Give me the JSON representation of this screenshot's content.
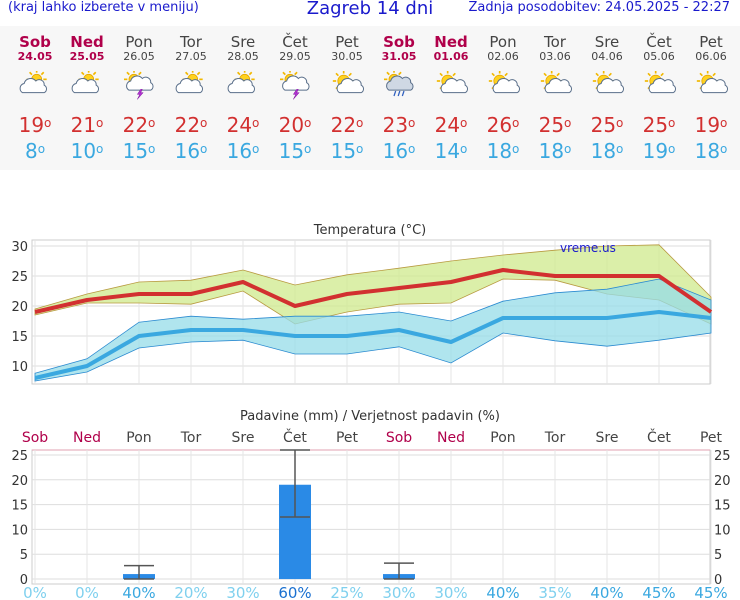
{
  "header": {
    "left_text": "(kraj lahko izberete v meniju)",
    "title": "Zagreb 14 dni",
    "updated": "Zadnja posodobitev: 24.05.2025 - 22:27"
  },
  "colors": {
    "weekend": "#b0004a",
    "weekday": "#444444",
    "max": "#d23030",
    "min": "#3aa8e0",
    "bar": "#2a8ae6"
  },
  "days": [
    {
      "name": "Sob",
      "date": "24.05",
      "weekend": true,
      "icon": "partly-cloudy-icon",
      "max": "19",
      "min": "8"
    },
    {
      "name": "Ned",
      "date": "25.05",
      "weekend": true,
      "icon": "partly-cloudy-icon",
      "max": "21",
      "min": "10"
    },
    {
      "name": "Pon",
      "date": "26.05",
      "weekend": false,
      "icon": "thunderstorm-icon",
      "max": "22",
      "min": "15"
    },
    {
      "name": "Tor",
      "date": "27.05",
      "weekend": false,
      "icon": "partly-cloudy-icon",
      "max": "22",
      "min": "16"
    },
    {
      "name": "Sre",
      "date": "28.05",
      "weekend": false,
      "icon": "partly-cloudy-icon",
      "max": "24",
      "min": "16"
    },
    {
      "name": "Čet",
      "date": "29.05",
      "weekend": false,
      "icon": "thunderstorm-icon",
      "max": "20",
      "min": "15"
    },
    {
      "name": "Pet",
      "date": "30.05",
      "weekend": false,
      "icon": "sun-cloud-icon",
      "max": "22",
      "min": "15"
    },
    {
      "name": "Sob",
      "date": "31.05",
      "weekend": true,
      "icon": "rain-shower-icon",
      "max": "23",
      "min": "16"
    },
    {
      "name": "Ned",
      "date": "01.06",
      "weekend": true,
      "icon": "sun-cloud-icon",
      "max": "24",
      "min": "14"
    },
    {
      "name": "Pon",
      "date": "02.06",
      "weekend": false,
      "icon": "sun-cloud-icon",
      "max": "26",
      "min": "18"
    },
    {
      "name": "Tor",
      "date": "03.06",
      "weekend": false,
      "icon": "sun-cloud-icon",
      "max": "25",
      "min": "18"
    },
    {
      "name": "Sre",
      "date": "04.06",
      "weekend": false,
      "icon": "sun-cloud-icon",
      "max": "25",
      "min": "18"
    },
    {
      "name": "Čet",
      "date": "05.06",
      "weekend": false,
      "icon": "sun-cloud-icon",
      "max": "25",
      "min": "19"
    },
    {
      "name": "Pet",
      "date": "06.06",
      "weekend": false,
      "icon": "sun-cloud-icon",
      "max": "19",
      "min": "18"
    }
  ],
  "chart_data": [
    {
      "type": "line",
      "title": "Temperatura (°C)",
      "watermark": "vreme.us",
      "ylim": [
        7,
        31
      ],
      "yticks": [
        10,
        15,
        20,
        25,
        30
      ],
      "grid": true,
      "series": [
        {
          "values": [
            19,
            21,
            22,
            22,
            24,
            20,
            22,
            23,
            24,
            26,
            25,
            25,
            25,
            19
          ],
          "color": "#d23030"
        },
        {
          "values": [
            8,
            10,
            15,
            16,
            16,
            15,
            15,
            16,
            14,
            18,
            18,
            18,
            19,
            18
          ],
          "color": "#3aa8e0"
        }
      ],
      "bands": [
        {
          "low": [
            18.5,
            20.5,
            20.5,
            20.3,
            22.5,
            17,
            19,
            20.3,
            20.5,
            24.5,
            24.3,
            22,
            21,
            17
          ],
          "high": [
            19.5,
            22,
            24,
            24.3,
            26,
            23.5,
            25.2,
            26.3,
            27.5,
            28.5,
            29.3,
            30,
            30.2,
            21.5
          ],
          "color": "#cfe98c"
        },
        {
          "low": [
            7.5,
            9,
            13,
            14,
            14.3,
            12,
            12,
            13.2,
            10.5,
            15.5,
            14.2,
            13.3,
            14.3,
            15.5
          ],
          "high": [
            8.8,
            11.2,
            17.3,
            18.3,
            17.8,
            18.3,
            18.3,
            19,
            17.5,
            20.8,
            22.2,
            22.8,
            24.5,
            21
          ],
          "color": "#96dce8"
        }
      ]
    },
    {
      "type": "bar",
      "title": "Padavine (mm) / Verjetnost padavin (%)",
      "ylim": [
        -1,
        26
      ],
      "yticks": [
        0,
        5,
        10,
        15,
        20,
        25
      ],
      "grid": true,
      "categories": [
        "Sob",
        "Ned",
        "Pon",
        "Tor",
        "Sre",
        "Čet",
        "Pet",
        "Sob",
        "Ned",
        "Pon",
        "Tor",
        "Sre",
        "Čet",
        "Pet"
      ],
      "values": [
        0,
        0,
        1,
        0,
        0,
        19,
        0,
        1,
        0,
        0,
        0,
        0,
        0,
        0
      ],
      "error_low": [
        null,
        null,
        0,
        null,
        null,
        12.5,
        null,
        0,
        null,
        null,
        null,
        null,
        null,
        null
      ],
      "error_high": [
        null,
        null,
        2.7,
        null,
        null,
        26,
        null,
        3.2,
        null,
        null,
        null,
        null,
        null,
        null
      ],
      "probability": [
        "0%",
        "0%",
        "40%",
        "20%",
        "30%",
        "60%",
        "25%",
        "30%",
        "30%",
        "40%",
        "35%",
        "40%",
        "45%",
        "45%"
      ],
      "probability_values": [
        0,
        0,
        40,
        20,
        30,
        60,
        25,
        30,
        30,
        40,
        35,
        40,
        45,
        45
      ]
    }
  ]
}
